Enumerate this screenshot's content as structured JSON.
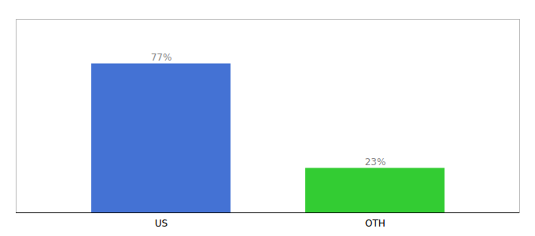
{
  "chart_data": {
    "type": "bar",
    "categories": [
      "US",
      "OTH"
    ],
    "values": [
      77,
      23
    ],
    "colors": [
      "#4472d4",
      "#33cc33"
    ],
    "value_labels": [
      "77%",
      "23%"
    ],
    "data_labels": true,
    "ylim": [
      0,
      100
    ],
    "tick_labels": "x"
  }
}
